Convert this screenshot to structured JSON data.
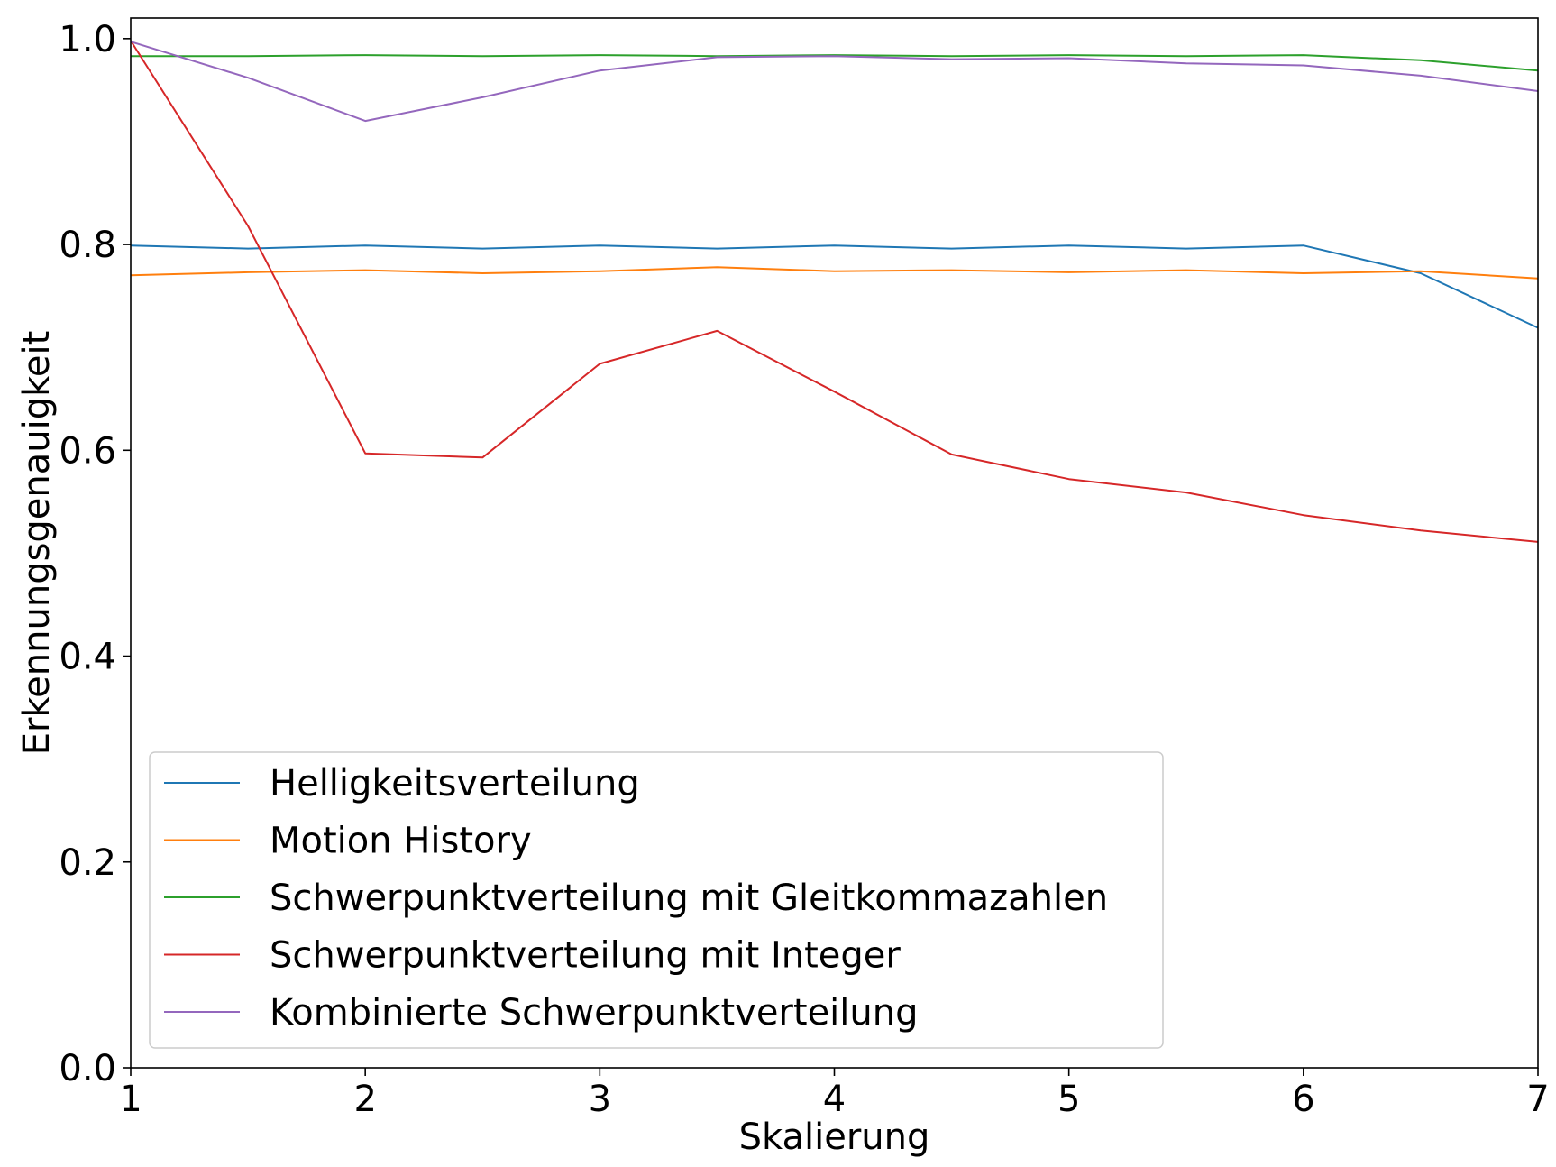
{
  "chart_data": {
    "type": "line",
    "xlabel": "Skalierung",
    "ylabel": "Erkennungsgenauigkeit",
    "xlim": [
      1,
      7
    ],
    "ylim": [
      0,
      1.02
    ],
    "xticks": [
      1,
      2,
      3,
      4,
      5,
      6,
      7
    ],
    "xtick_labels": [
      "1",
      "2",
      "3",
      "4",
      "5",
      "6",
      "7"
    ],
    "yticks": [
      0,
      0.2,
      0.4,
      0.6,
      0.8,
      1.0
    ],
    "ytick_labels": [
      "0.0",
      "0.2",
      "0.4",
      "0.6",
      "0.8",
      "1.0"
    ],
    "grid": false,
    "legend_position": "lower-left",
    "x": [
      1,
      1.5,
      2,
      2.5,
      3,
      3.5,
      4,
      4.5,
      5,
      5.5,
      6,
      6.5,
      7
    ],
    "series": [
      {
        "name": "Helligkeitsverteilung",
        "color": "#1f77b4",
        "values": [
          0.799,
          0.796,
          0.799,
          0.796,
          0.799,
          0.796,
          0.799,
          0.796,
          0.799,
          0.796,
          0.799,
          0.772,
          0.719
        ]
      },
      {
        "name": "Motion History",
        "color": "#ff7f0e",
        "values": [
          0.77,
          0.773,
          0.775,
          0.772,
          0.774,
          0.778,
          0.774,
          0.775,
          0.773,
          0.775,
          0.772,
          0.774,
          0.767
        ]
      },
      {
        "name": "Schwerpunktverteilung mit Gleitkommazahlen",
        "color": "#2ca02c",
        "values": [
          0.983,
          0.983,
          0.984,
          0.983,
          0.984,
          0.983,
          0.984,
          0.983,
          0.984,
          0.983,
          0.984,
          0.979,
          0.969
        ]
      },
      {
        "name": "Schwerpunktverteilung mit Integer",
        "color": "#d62728",
        "values": [
          0.998,
          0.818,
          0.597,
          0.593,
          0.684,
          0.716,
          0.657,
          0.596,
          0.572,
          0.559,
          0.537,
          0.522,
          0.511
        ]
      },
      {
        "name": "Kombinierte Schwerpunktverteilung",
        "color": "#9467bd",
        "values": [
          0.997,
          0.962,
          0.92,
          0.943,
          0.969,
          0.982,
          0.983,
          0.98,
          0.981,
          0.976,
          0.974,
          0.964,
          0.949
        ]
      }
    ]
  }
}
